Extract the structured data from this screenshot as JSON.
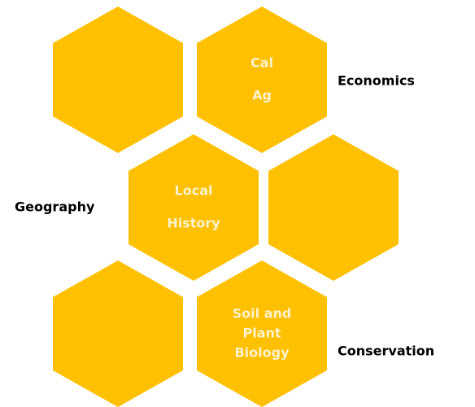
{
  "nodes": [
    {
      "lines": [
        "Cal",
        "Ag"
      ]
    },
    {
      "lines": [
        "Local",
        "History"
      ]
    },
    {
      "lines": [
        "Soil and",
        "Plant",
        "Biology"
      ]
    }
  ],
  "labels": [
    "Economics",
    "Geography",
    "Conservation"
  ]
}
